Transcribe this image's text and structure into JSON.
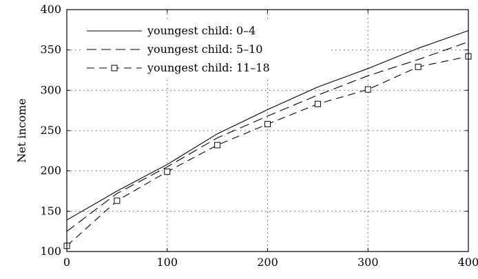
{
  "chart_data": {
    "type": "line",
    "title": "",
    "xlabel": "",
    "ylabel": "Net income",
    "xlim": [
      0,
      400
    ],
    "ylim": [
      100,
      400
    ],
    "xticks": [
      0,
      100,
      200,
      300,
      400
    ],
    "yticks": [
      100,
      150,
      200,
      250,
      300,
      350,
      400
    ],
    "grid": true,
    "legend_position": "top-left",
    "series": [
      {
        "name": "youngest child: 0–4",
        "style": "solid",
        "marker": "none",
        "x": [
          0,
          50,
          100,
          150,
          200,
          250,
          300,
          350,
          400
        ],
        "values": [
          139,
          175,
          208,
          246,
          276,
          304,
          327,
          352,
          374
        ]
      },
      {
        "name": "youngest child: 5–10",
        "style": "long-dash",
        "marker": "none",
        "x": [
          0,
          50,
          100,
          150,
          200,
          250,
          300,
          350,
          400
        ],
        "values": [
          125,
          172,
          205,
          241,
          268,
          294,
          318,
          338,
          360
        ]
      },
      {
        "name": "youngest child: 11–18",
        "style": "dash",
        "marker": "square",
        "x": [
          0,
          50,
          100,
          150,
          200,
          250,
          300,
          350,
          400
        ],
        "values": [
          107,
          163,
          199,
          232,
          258,
          283,
          301,
          329,
          342
        ]
      }
    ]
  }
}
